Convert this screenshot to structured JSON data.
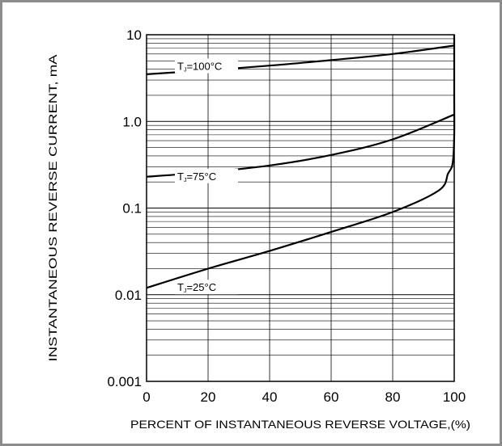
{
  "chart_data": {
    "type": "line",
    "xlabel": "PERCENT OF INSTANTANEOUS REVERSE VOLTAGE,(%)",
    "ylabel": "INSTANTANEOUS REVERSE CURRENT, mA",
    "xlim": [
      0,
      100
    ],
    "ylim": [
      0.001,
      10
    ],
    "yscale": "log",
    "grid": true,
    "x_ticks": [
      "0",
      "20",
      "40",
      "60",
      "80",
      "100"
    ],
    "y_ticks": [
      "0.001",
      "0.01",
      "0.1",
      "1.0",
      "10"
    ],
    "series": [
      {
        "label": {
          "base": "T",
          "sub": "J",
          "rest": "=100°C"
        },
        "x": [
          0,
          20,
          40,
          60,
          80,
          100
        ],
        "y": [
          3.5,
          3.9,
          4.4,
          5.1,
          6.0,
          7.5
        ]
      },
      {
        "label": {
          "base": "T",
          "sub": "J",
          "rest": "=75°C"
        },
        "x": [
          0,
          20,
          40,
          60,
          80,
          100
        ],
        "y": [
          0.23,
          0.26,
          0.31,
          0.41,
          0.62,
          1.2
        ]
      },
      {
        "label": {
          "base": "T",
          "sub": "J",
          "rest": "=25°C"
        },
        "x": [
          0,
          20,
          40,
          60,
          80,
          95,
          98,
          99.5,
          100,
          100,
          100
        ],
        "y": [
          0.012,
          0.02,
          0.032,
          0.053,
          0.09,
          0.16,
          0.25,
          0.33,
          0.7,
          2.0,
          10
        ]
      }
    ]
  }
}
